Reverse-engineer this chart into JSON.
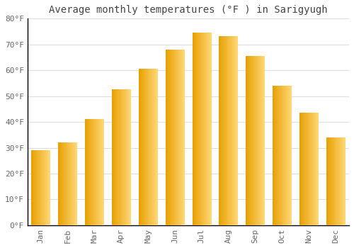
{
  "title": "Average monthly temperatures (°F ) in Sarigyugh",
  "months": [
    "Jan",
    "Feb",
    "Mar",
    "Apr",
    "May",
    "Jun",
    "Jul",
    "Aug",
    "Sep",
    "Oct",
    "Nov",
    "Dec"
  ],
  "values": [
    29,
    32,
    41,
    52.5,
    60.5,
    68,
    74.5,
    73,
    65.5,
    54,
    43.5,
    34
  ],
  "bar_color_left": "#F5A800",
  "bar_color_right": "#FFD060",
  "ylim": [
    0,
    80
  ],
  "yticks": [
    0,
    10,
    20,
    30,
    40,
    50,
    60,
    70,
    80
  ],
  "ytick_labels": [
    "0°F",
    "10°F",
    "20°F",
    "30°F",
    "40°F",
    "50°F",
    "60°F",
    "70°F",
    "80°F"
  ],
  "background_color": "#FFFFFF",
  "grid_color": "#DDDDDD",
  "title_fontsize": 10,
  "tick_fontsize": 8,
  "font_family": "monospace",
  "tick_color": "#666666",
  "title_color": "#444444"
}
